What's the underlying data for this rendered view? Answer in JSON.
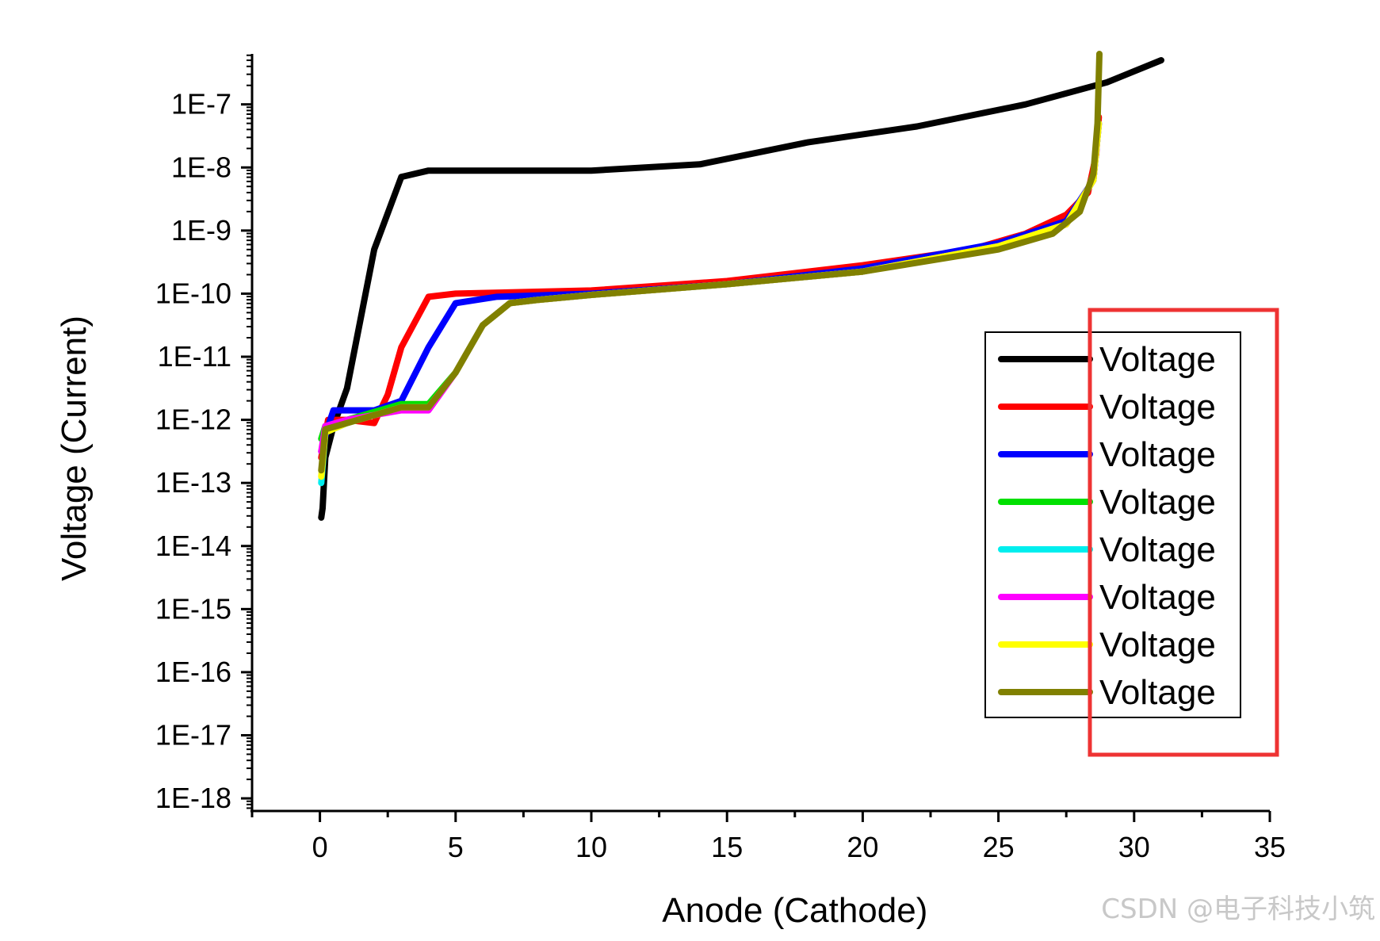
{
  "chart_data": {
    "type": "line",
    "title": "",
    "xlabel": "Anode (Cathode)",
    "ylabel": "Voltage (Current)",
    "xlim": [
      -2.5,
      35
    ],
    "ylim_log10": [
      -18.2,
      -6.2
    ],
    "x_ticks": [
      0,
      5,
      10,
      15,
      20,
      25,
      30,
      35
    ],
    "x_tick_labels": [
      "0",
      "5",
      "10",
      "15",
      "20",
      "25",
      "30",
      "35"
    ],
    "y_ticks_log10": [
      -7,
      -8,
      -9,
      -10,
      -11,
      -12,
      -13,
      -14,
      -15,
      -16,
      -17,
      -18
    ],
    "y_tick_labels": [
      "1E-7",
      "1E-8",
      "1E-9",
      "1E-10",
      "1E-11",
      "1E-12",
      "1E-13",
      "1E-14",
      "1E-15",
      "1E-16",
      "1E-17",
      "1E-18"
    ],
    "legend_position": "right",
    "series": [
      {
        "name": "Voltage",
        "color": "#000000",
        "points": [
          [
            0.05,
            -13.55
          ],
          [
            0.1,
            -13.4
          ],
          [
            0.2,
            -12.6
          ],
          [
            0.5,
            -12.1
          ],
          [
            1.0,
            -11.5
          ],
          [
            2.0,
            -9.3
          ],
          [
            3.0,
            -8.15
          ],
          [
            4.0,
            -8.05
          ],
          [
            6.0,
            -8.05
          ],
          [
            10.0,
            -8.05
          ],
          [
            14.0,
            -7.95
          ],
          [
            18.0,
            -7.6
          ],
          [
            22.0,
            -7.35
          ],
          [
            26.0,
            -7.0
          ],
          [
            29.0,
            -6.65
          ],
          [
            31.0,
            -6.3
          ]
        ]
      },
      {
        "name": "Voltage",
        "color": "#ff0000",
        "points": [
          [
            0.05,
            -12.6
          ],
          [
            0.3,
            -12.0
          ],
          [
            1.0,
            -12.0
          ],
          [
            2.0,
            -12.05
          ],
          [
            2.5,
            -11.6
          ],
          [
            3.0,
            -10.85
          ],
          [
            4.0,
            -10.05
          ],
          [
            5.0,
            -10.0
          ],
          [
            10.0,
            -9.95
          ],
          [
            15.0,
            -9.8
          ],
          [
            20.0,
            -9.55
          ],
          [
            24.0,
            -9.3
          ],
          [
            26.0,
            -9.05
          ],
          [
            27.5,
            -8.75
          ],
          [
            28.3,
            -8.4
          ],
          [
            28.6,
            -7.8
          ],
          [
            28.7,
            -7.2
          ]
        ]
      },
      {
        "name": "Voltage",
        "color": "#0000ff",
        "points": [
          [
            0.05,
            -12.5
          ],
          [
            0.3,
            -12.1
          ],
          [
            0.5,
            -11.85
          ],
          [
            2.0,
            -11.85
          ],
          [
            3.0,
            -11.7
          ],
          [
            4.0,
            -10.85
          ],
          [
            5.0,
            -10.15
          ],
          [
            6.5,
            -10.05
          ],
          [
            10.0,
            -10.0
          ],
          [
            15.0,
            -9.85
          ],
          [
            20.0,
            -9.6
          ],
          [
            25.0,
            -9.2
          ],
          [
            27.5,
            -8.85
          ],
          [
            28.5,
            -8.2
          ],
          [
            28.7,
            -7.3
          ]
        ]
      },
      {
        "name": "Voltage",
        "color": "#00e000",
        "points": [
          [
            0.05,
            -12.3
          ],
          [
            0.2,
            -12.1
          ],
          [
            1.0,
            -12.0
          ],
          [
            3.0,
            -11.75
          ],
          [
            4.0,
            -11.75
          ],
          [
            5.0,
            -11.25
          ],
          [
            6.0,
            -10.5
          ],
          [
            7.0,
            -10.15
          ],
          [
            8.0,
            -10.1
          ],
          [
            10.0,
            -10.02
          ],
          [
            15.0,
            -9.85
          ],
          [
            20.0,
            -9.65
          ],
          [
            25.0,
            -9.25
          ],
          [
            27.5,
            -8.9
          ],
          [
            28.5,
            -8.2
          ],
          [
            28.7,
            -7.3
          ]
        ]
      },
      {
        "name": "Voltage",
        "color": "#00eeee",
        "points": [
          [
            0.05,
            -13.0
          ],
          [
            0.2,
            -12.2
          ],
          [
            1.0,
            -12.05
          ],
          [
            3.0,
            -11.8
          ],
          [
            4.0,
            -11.8
          ],
          [
            5.0,
            -11.25
          ],
          [
            6.0,
            -10.5
          ],
          [
            7.0,
            -10.15
          ],
          [
            8.0,
            -10.1
          ],
          [
            10.0,
            -10.02
          ],
          [
            15.0,
            -9.85
          ],
          [
            20.0,
            -9.65
          ],
          [
            25.0,
            -9.25
          ],
          [
            27.5,
            -8.9
          ],
          [
            28.5,
            -8.2
          ],
          [
            28.7,
            -7.3
          ]
        ]
      },
      {
        "name": "Voltage",
        "color": "#ff00ff",
        "points": [
          [
            0.05,
            -12.5
          ],
          [
            0.2,
            -12.1
          ],
          [
            1.0,
            -12.0
          ],
          [
            3.0,
            -11.85
          ],
          [
            4.0,
            -11.85
          ],
          [
            5.0,
            -11.25
          ],
          [
            6.0,
            -10.5
          ],
          [
            7.0,
            -10.15
          ],
          [
            8.0,
            -10.1
          ],
          [
            10.0,
            -10.02
          ],
          [
            15.0,
            -9.85
          ],
          [
            20.0,
            -9.65
          ],
          [
            25.0,
            -9.25
          ],
          [
            27.5,
            -8.9
          ],
          [
            28.5,
            -8.2
          ],
          [
            28.7,
            -7.3
          ]
        ]
      },
      {
        "name": "Voltage",
        "color": "#ffff00",
        "points": [
          [
            0.05,
            -12.9
          ],
          [
            0.2,
            -12.2
          ],
          [
            1.0,
            -12.05
          ],
          [
            3.0,
            -11.8
          ],
          [
            4.0,
            -11.8
          ],
          [
            5.0,
            -11.25
          ],
          [
            6.0,
            -10.5
          ],
          [
            7.0,
            -10.15
          ],
          [
            8.0,
            -10.1
          ],
          [
            10.0,
            -10.02
          ],
          [
            15.0,
            -9.85
          ],
          [
            20.0,
            -9.65
          ],
          [
            25.0,
            -9.25
          ],
          [
            27.5,
            -8.9
          ],
          [
            28.5,
            -8.2
          ],
          [
            28.7,
            -7.3
          ]
        ]
      },
      {
        "name": "Voltage",
        "color": "#808000",
        "points": [
          [
            0.05,
            -12.8
          ],
          [
            0.2,
            -12.15
          ],
          [
            1.0,
            -12.05
          ],
          [
            3.0,
            -11.8
          ],
          [
            4.0,
            -11.8
          ],
          [
            5.0,
            -11.25
          ],
          [
            6.0,
            -10.5
          ],
          [
            7.0,
            -10.15
          ],
          [
            8.0,
            -10.1
          ],
          [
            10.0,
            -10.02
          ],
          [
            15.0,
            -9.85
          ],
          [
            20.0,
            -9.65
          ],
          [
            25.0,
            -9.3
          ],
          [
            27.0,
            -9.05
          ],
          [
            28.0,
            -8.7
          ],
          [
            28.5,
            -8.1
          ],
          [
            28.65,
            -7.3
          ],
          [
            28.72,
            -6.2
          ]
        ]
      }
    ]
  },
  "colors": {
    "axis": "#000000",
    "highlight_box": "#ee3333",
    "watermark": "#c8c8c8"
  },
  "watermark_text": "CSDN @电子科技小筑"
}
